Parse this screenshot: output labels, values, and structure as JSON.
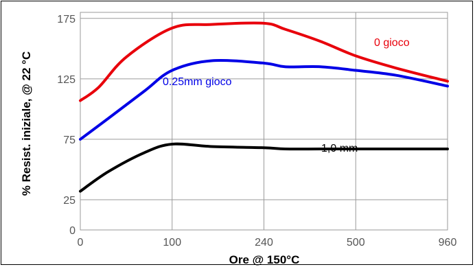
{
  "chart_data": {
    "type": "line",
    "xlabel": "Ore @ 150°C",
    "ylabel": "% Resist. iniziale, @ 22 °C",
    "x_tick_labels": [
      "0",
      "100",
      "240",
      "500",
      "960"
    ],
    "x_axis_note": "non-uniform spacing: tick labels equally spaced",
    "y_ticks": [
      0,
      25,
      75,
      125,
      175
    ],
    "ylim": [
      0,
      180
    ],
    "grid": true,
    "series": [
      {
        "name": "0 gioco",
        "color": "#e8000b",
        "x": [
          0,
          20,
          50,
          100,
          160,
          240,
          300,
          400,
          500,
          700,
          960
        ],
        "y": [
          107,
          118,
          143,
          167,
          170,
          171,
          166,
          156,
          144,
          134,
          123
        ]
      },
      {
        "name": "0.25mm gioco",
        "color": "#0000e6",
        "x": [
          0,
          30,
          70,
          100,
          160,
          240,
          300,
          400,
          500,
          700,
          960
        ],
        "y": [
          75,
          92,
          115,
          132,
          140,
          138,
          135,
          135,
          132,
          128,
          119
        ]
      },
      {
        "name": "1,0 mm",
        "color": "#000000",
        "x": [
          0,
          30,
          70,
          100,
          160,
          240,
          300,
          400,
          500,
          700,
          960
        ],
        "y": [
          32,
          48,
          64,
          71,
          69,
          68,
          67,
          67,
          67,
          67,
          67
        ]
      }
    ]
  }
}
